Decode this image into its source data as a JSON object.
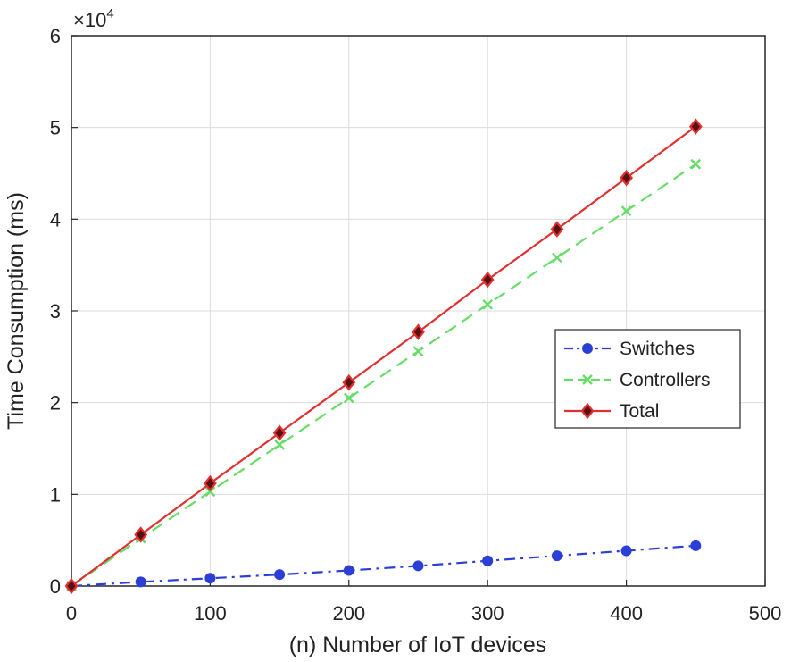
{
  "chart_data": {
    "type": "line",
    "title": "",
    "xlabel": "(n) Number of IoT devices",
    "ylabel": "Time Consumption (ms)",
    "xlim": [
      0,
      500
    ],
    "ylim": [
      0,
      60000
    ],
    "x_ticks": [
      0,
      100,
      200,
      300,
      400,
      500
    ],
    "y_ticks": [
      0,
      1,
      2,
      3,
      4,
      5,
      6
    ],
    "y_multiplier_text": "×10",
    "y_multiplier_exp": "4",
    "y_multiplier": 10000,
    "grid": true,
    "legend_position": "center-right",
    "x": [
      0,
      50,
      100,
      150,
      200,
      250,
      300,
      350,
      400,
      450
    ],
    "series": [
      {
        "name": "Switches",
        "color": "#2b3fd6",
        "line_style": "dash-dot",
        "marker": "circle",
        "values": [
          0,
          450,
          850,
          1250,
          1700,
          2200,
          2750,
          3300,
          3850,
          4400
        ]
      },
      {
        "name": "Controllers",
        "color": "#66dd66",
        "line_style": "dashed",
        "marker": "x",
        "values": [
          0,
          5200,
          10300,
          15400,
          20500,
          25600,
          30700,
          35800,
          40900,
          46000
        ]
      },
      {
        "name": "Total",
        "color": "#e03030",
        "line_style": "solid",
        "marker": "diamond",
        "values": [
          0,
          5600,
          11200,
          16700,
          22200,
          27700,
          33400,
          38900,
          44500,
          50100
        ]
      }
    ]
  }
}
